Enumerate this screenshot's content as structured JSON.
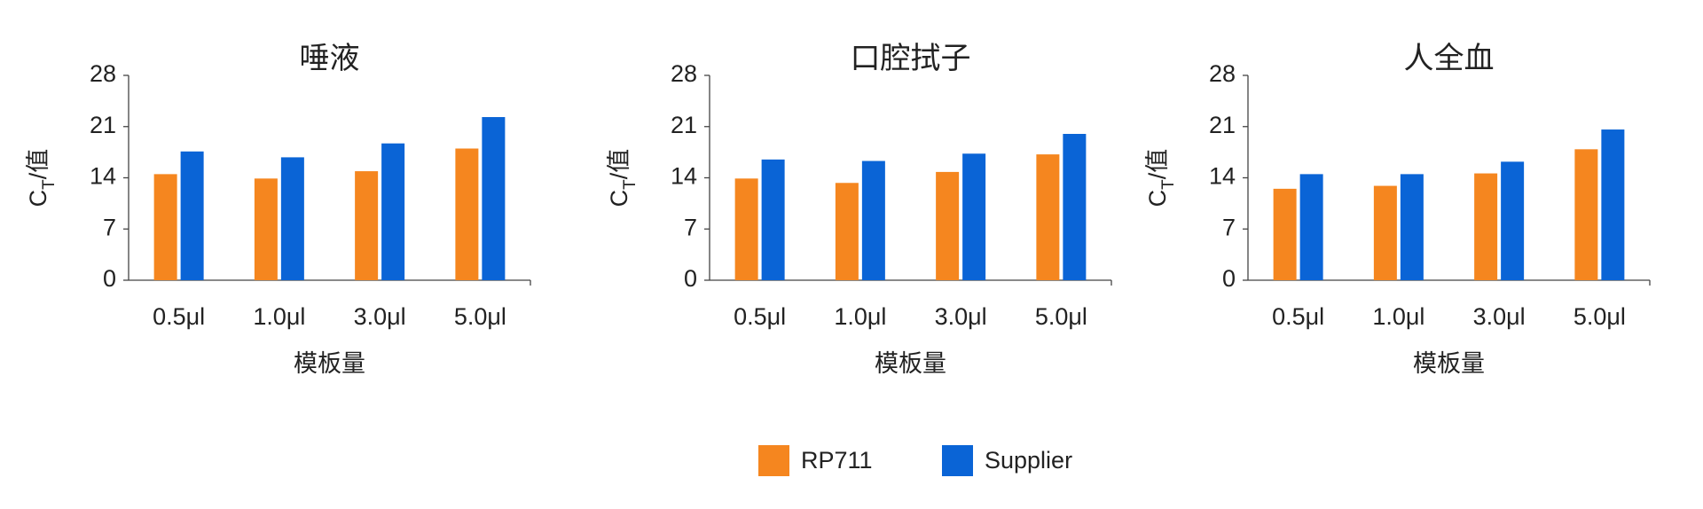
{
  "chart_data": [
    {
      "type": "bar",
      "title": "唾液",
      "ylabel": [
        "C",
        "T",
        "/值"
      ],
      "xlabel": "模板量",
      "categories": [
        "0.5μl",
        "1.0μl",
        "3.0μl",
        "5.0μl"
      ],
      "series": [
        {
          "name": "RP711",
          "color": "#f5861f",
          "values": [
            14.5,
            13.9,
            14.9,
            18.0
          ]
        },
        {
          "name": "Supplier",
          "color": "#0a64d6",
          "values": [
            17.6,
            16.8,
            18.7,
            22.3
          ]
        }
      ],
      "ylim": [
        0,
        28
      ],
      "yticks": [
        0,
        7,
        14,
        21,
        28
      ]
    },
    {
      "type": "bar",
      "title": "口腔拭子",
      "ylabel": [
        "C",
        "T",
        "/值"
      ],
      "xlabel": "模板量",
      "categories": [
        "0.5μl",
        "1.0μl",
        "3.0μl",
        "5.0μl"
      ],
      "series": [
        {
          "name": "RP711",
          "color": "#f5861f",
          "values": [
            13.9,
            13.3,
            14.8,
            17.2
          ]
        },
        {
          "name": "Supplier",
          "color": "#0a64d6",
          "values": [
            16.5,
            16.3,
            17.3,
            20.0
          ]
        }
      ],
      "ylim": [
        0,
        28
      ],
      "yticks": [
        0,
        7,
        14,
        21,
        28
      ]
    },
    {
      "type": "bar",
      "title": "人全血",
      "ylabel": [
        "C",
        "T",
        "/值"
      ],
      "xlabel": "模板量",
      "categories": [
        "0.5μl",
        "1.0μl",
        "3.0μl",
        "5.0μl"
      ],
      "series": [
        {
          "name": "RP711",
          "color": "#f5861f",
          "values": [
            12.5,
            12.9,
            14.6,
            17.9
          ]
        },
        {
          "name": "Supplier",
          "color": "#0a64d6",
          "values": [
            14.5,
            14.5,
            16.2,
            20.6
          ]
        }
      ],
      "ylim": [
        0,
        28
      ],
      "yticks": [
        0,
        7,
        14,
        21,
        28
      ]
    }
  ]
}
